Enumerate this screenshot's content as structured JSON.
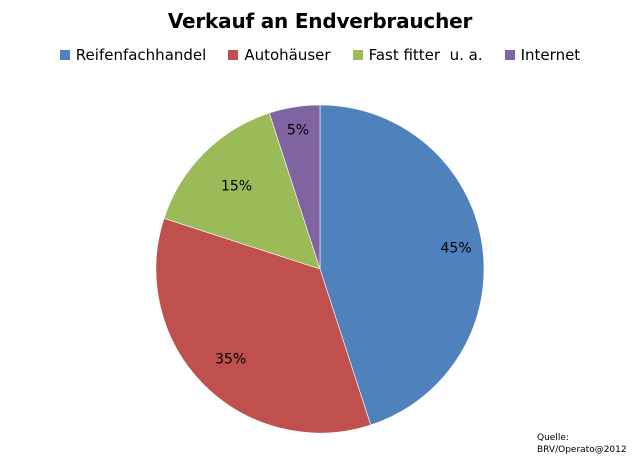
{
  "chart_data": {
    "type": "pie",
    "title": "Verkauf an Endverbraucher",
    "categories": [
      "Reifenfachhandel",
      "Autohäuser",
      "Fast fitter  u. a.",
      "Internet"
    ],
    "values": [
      45,
      35,
      15,
      5
    ],
    "data_labels": [
      "45%",
      "35%",
      "15%",
      "5%"
    ],
    "colors": [
      "#4f81bd",
      "#c0504d",
      "#9bbb59",
      "#8064a2"
    ],
    "legend_position": "top",
    "start_angle_deg": 0,
    "direction": "clockwise"
  },
  "source": {
    "line1": "Quelle:",
    "line2": "BRV/Operato@2012"
  }
}
